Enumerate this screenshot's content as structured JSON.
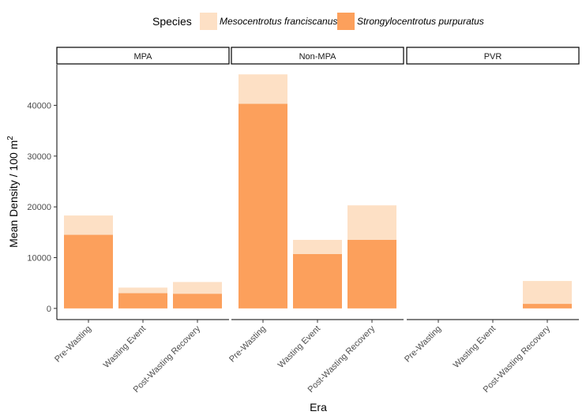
{
  "chart_data": {
    "type": "bar",
    "stacked": true,
    "facets": [
      "MPA",
      "Non-MPA",
      "PVR"
    ],
    "categories": [
      "Pre-Wasting",
      "Wasting Event",
      "Post-Wasting Recovery"
    ],
    "legend": {
      "title": "Species",
      "position": "top",
      "entries": [
        "Mesocentrotus franciscanus",
        "Strongylocentrotus purpuratus"
      ]
    },
    "series": [
      {
        "name": "Strongylocentrotus purpuratus",
        "color": "#fca05c",
        "values": {
          "MPA": [
            14500,
            3000,
            2900
          ],
          "Non-MPA": [
            40300,
            10700,
            13500
          ],
          "PVR": [
            0,
            0,
            900
          ]
        }
      },
      {
        "name": "Mesocentrotus franciscanus",
        "color": "#fde0c5",
        "values": {
          "MPA": [
            3800,
            1100,
            2300
          ],
          "Non-MPA": [
            5800,
            2800,
            6800
          ],
          "PVR": [
            0,
            0,
            4500
          ]
        }
      }
    ],
    "xlabel": "Era",
    "ylabel_main": "Mean Density / 100 m",
    "ylabel_sup": "2",
    "ylim": [
      -2200,
      48000
    ],
    "yticks": [
      0,
      10000,
      20000,
      30000,
      40000
    ],
    "grid": false
  }
}
